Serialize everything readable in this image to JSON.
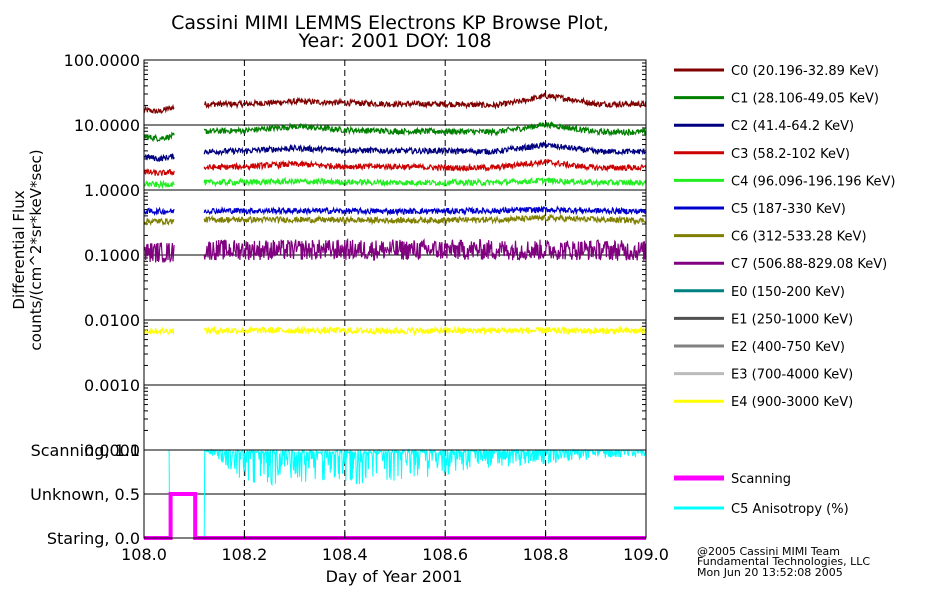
{
  "title_line1": "Cassini MIMI LEMMS Electrons KP Browse Plot,",
  "title_line2": "Year: 2001 DOY: 108",
  "footer": {
    "line1": "@2005 Cassini MIMI Team",
    "line2": "Fundamental Technologies, LLC",
    "line3": "Mon Jun 20 13:52:08 2005"
  },
  "chart_data": [
    {
      "type": "line",
      "title": "Cassini MIMI LEMMS Electrons KP Browse Plot, Year: 2001 DOY: 108",
      "ylabel_line1": "Differential Flux",
      "ylabel_line2": "counts/(cm^2*sr*keV*sec)",
      "yscale": "log",
      "ylim": [
        0.0001,
        100.0
      ],
      "xlim": [
        108.0,
        109.0
      ],
      "y_ticks": [
        "100.0000",
        "10.0000",
        "1.0000",
        "0.1000",
        "0.0100",
        "0.0010",
        "0.0001"
      ],
      "x_dashed_gridlines": [
        108.2,
        108.4,
        108.6,
        108.8
      ],
      "data_gap": [
        108.063,
        108.12
      ],
      "legend_position": "right",
      "series": [
        {
          "name": "C0 (20.196-32.89 KeV)",
          "color": "#800000",
          "segments": [
            {
              "x": [
                108.0,
                108.03,
                108.06
              ],
              "y": [
                17,
                16,
                19
              ]
            },
            {
              "x": [
                108.12,
                108.2,
                108.3,
                108.4,
                108.5,
                108.6,
                108.7,
                108.75,
                108.8,
                108.85,
                108.9,
                109.0
              ],
              "y": [
                21,
                21,
                23,
                22,
                21,
                21,
                20,
                23,
                28,
                25,
                21,
                21
              ]
            }
          ]
        },
        {
          "name": "C1 (28.106-49.05 KeV)",
          "color": "#008000",
          "segments": [
            {
              "x": [
                108.0,
                108.03,
                108.06
              ],
              "y": [
                6.6,
                6.2,
                6.8
              ]
            },
            {
              "x": [
                108.12,
                108.2,
                108.3,
                108.4,
                108.5,
                108.6,
                108.7,
                108.75,
                108.8,
                108.85,
                108.9,
                109.0
              ],
              "y": [
                8.0,
                8.2,
                9.5,
                8.4,
                8.0,
                8.0,
                7.8,
                8.8,
                10.2,
                9.0,
                7.8,
                7.8
              ]
            }
          ]
        },
        {
          "name": "C2 (41.4-64.2 KeV)",
          "color": "#000080",
          "segments": [
            {
              "x": [
                108.0,
                108.03,
                108.06
              ],
              "y": [
                3.3,
                3.0,
                3.3
              ]
            },
            {
              "x": [
                108.12,
                108.2,
                108.3,
                108.4,
                108.5,
                108.6,
                108.7,
                108.75,
                108.8,
                108.85,
                108.9,
                109.0
              ],
              "y": [
                3.9,
                4.0,
                4.4,
                4.1,
                4.0,
                4.0,
                3.9,
                4.4,
                4.9,
                4.4,
                3.9,
                3.9
              ]
            }
          ]
        },
        {
          "name": "C3 (58.2-102 KeV)",
          "color": "#cc0000",
          "segments": [
            {
              "x": [
                108.0,
                108.03,
                108.06
              ],
              "y": [
                1.9,
                1.8,
                1.9
              ]
            },
            {
              "x": [
                108.12,
                108.2,
                108.3,
                108.4,
                108.5,
                108.6,
                108.7,
                108.75,
                108.8,
                108.85,
                108.9,
                109.0
              ],
              "y": [
                2.2,
                2.3,
                2.5,
                2.3,
                2.3,
                2.2,
                2.2,
                2.5,
                2.7,
                2.4,
                2.2,
                2.2
              ]
            }
          ]
        },
        {
          "name": "C4 (96.096-196.196 KeV)",
          "color": "#22ee22",
          "segments": [
            {
              "x": [
                108.0,
                108.03,
                108.06
              ],
              "y": [
                1.25,
                1.2,
                1.25
              ]
            },
            {
              "x": [
                108.12,
                108.3,
                108.5,
                108.7,
                108.8,
                108.9,
                109.0
              ],
              "y": [
                1.3,
                1.35,
                1.3,
                1.3,
                1.4,
                1.3,
                1.3
              ]
            }
          ]
        },
        {
          "name": "C5 (187-330 KeV)",
          "color": "#0000cc",
          "segments": [
            {
              "x": [
                108.0,
                108.06
              ],
              "y": [
                0.47,
                0.47
              ]
            },
            {
              "x": [
                108.12,
                108.3,
                108.5,
                108.7,
                108.8,
                108.9,
                109.0
              ],
              "y": [
                0.48,
                0.48,
                0.47,
                0.48,
                0.5,
                0.48,
                0.47
              ]
            }
          ]
        },
        {
          "name": "C6 (312-533.28 KeV)",
          "color": "#808000",
          "segments": [
            {
              "x": [
                108.0,
                108.06
              ],
              "y": [
                0.33,
                0.33
              ]
            },
            {
              "x": [
                108.12,
                108.3,
                108.5,
                108.7,
                108.8,
                108.9,
                109.0
              ],
              "y": [
                0.35,
                0.35,
                0.34,
                0.35,
                0.37,
                0.35,
                0.34
              ]
            }
          ]
        },
        {
          "name": "C7 (506.88-829.08 KeV)",
          "color": "#800080",
          "segments": [
            {
              "x": [
                108.0,
                108.06
              ],
              "y": [
                0.11,
                0.11
              ]
            },
            {
              "x": [
                108.12,
                108.3,
                108.5,
                108.7,
                108.8,
                108.9,
                109.0
              ],
              "y": [
                0.12,
                0.12,
                0.12,
                0.12,
                0.12,
                0.12,
                0.115
              ]
            }
          ]
        },
        {
          "name": "E0 (150-200 KeV)",
          "color": "#008080",
          "segments": []
        },
        {
          "name": "E1 (250-1000 KeV)",
          "color": "#505050",
          "segments": []
        },
        {
          "name": "E2 (400-750 KeV)",
          "color": "#808080",
          "segments": []
        },
        {
          "name": "E3 (700-4000 KeV)",
          "color": "#bbbbbb",
          "segments": []
        },
        {
          "name": "E4 (900-3000 KeV)",
          "color": "#ffff00",
          "segments": [
            {
              "x": [
                108.0,
                108.06
              ],
              "y": [
                0.0068,
                0.0068
              ]
            },
            {
              "x": [
                108.12,
                108.3,
                108.5,
                108.7,
                108.9,
                109.0
              ],
              "y": [
                0.0069,
                0.0069,
                0.0068,
                0.0069,
                0.0068,
                0.0068
              ]
            }
          ]
        }
      ]
    },
    {
      "type": "line",
      "xlabel": "Day of Year 2001",
      "xlim": [
        108.0,
        109.0
      ],
      "x_ticks": [
        "108.0",
        "108.2",
        "108.4",
        "108.6",
        "108.8",
        "109.0"
      ],
      "ylim": [
        0.0,
        1.0
      ],
      "y_ticks": [
        "Scanning, 1.0",
        "Unknown, 0.5",
        "Staring, 0.0"
      ],
      "legend_position": "right",
      "series": [
        {
          "name": "Scanning",
          "color": "#ff00ff",
          "x": [
            108.0,
            108.053,
            108.053,
            108.102,
            108.102,
            109.0
          ],
          "y": [
            0.0,
            0.0,
            0.5,
            0.5,
            0.0,
            0.0
          ]
        },
        {
          "name": "C5 Anisotropy (%)",
          "color": "#00ffff",
          "x": [
            108.0,
            108.05,
            108.05,
            108.12,
            108.12,
            108.2,
            108.25,
            108.3,
            108.4,
            108.5,
            108.6,
            108.7,
            108.8,
            108.9,
            109.0
          ],
          "y": [
            1.0,
            1.0,
            0.0,
            0.0,
            1.0,
            0.82,
            0.8,
            0.82,
            0.8,
            0.82,
            0.86,
            0.9,
            0.92,
            0.95,
            0.96
          ]
        }
      ]
    }
  ]
}
